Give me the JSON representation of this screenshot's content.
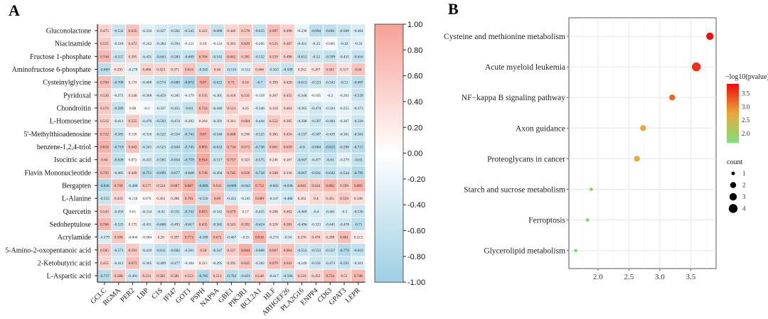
{
  "panels": {
    "a": "A",
    "b": "B"
  },
  "chart_data": [
    {
      "type": "heatmap",
      "rows": [
        "Gluconolactone",
        "Niacinamide",
        "Fructose 1-phosphate",
        "Aminofructose 6-phosphate",
        "Cysteinylglycine",
        "Pyridoxal",
        "Chondroitin",
        "L-Homoserine",
        "5'-Methylthioadenosine",
        "benzene-1,2,4-triol",
        "Isocitric acid",
        "Flavin Mononucleotide",
        "Bergapten",
        "L-Alanine",
        "Quercetin",
        "Sedoheptulose",
        "Acrylamide",
        "5-Amino-2-oxopentanoic acid",
        "2-Ketobutyric acid",
        "L-Aspartic acid"
      ],
      "columns": [
        "GCLC",
        "RGMA",
        "PER2",
        "LBP",
        "C1S",
        "IFI47",
        "GOT1",
        "PSPH",
        "NAPSA",
        "GBE1",
        "PIK3R1",
        "BCL2A1",
        "HLF",
        "ARHGEF26",
        "PLA2G16",
        "ENPP4",
        "CD63",
        "GPAT3",
        "LEPR"
      ],
      "values": [
        [
          0.475,
          -0.532,
          0.635,
          -0.334,
          -0.437,
          -0.502,
          -0.545,
          0.422,
          -0.608,
          0.446,
          0.578,
          -0.615,
          0.697,
          0.498,
          -0.238,
          -0.694,
          -0.661,
          -0.568,
          -0.404
        ],
        [
          0.555,
          -0.318,
          0.472,
          -0.242,
          -0.384,
          -0.394,
          -0.121,
          0.19,
          -0.124,
          0.363,
          0.629,
          -0.205,
          0.525,
          0.487,
          -0.411,
          -0.33,
          -0.095,
          -0.42,
          -0.33
        ],
        [
          0.744,
          -0.557,
          0.395,
          -0.435,
          -0.643,
          -0.583,
          -0.609,
          0.704,
          -0.542,
          0.662,
          0.585,
          -0.532,
          0.559,
          0.498,
          -0.612,
          -0.52,
          -0.599,
          -0.431,
          -0.616
        ],
        [
          -0.669,
          0.295,
          -0.278,
          0.486,
          0.423,
          0.371,
          0.624,
          -0.565,
          0.46,
          -0.516,
          -0.312,
          0.466,
          -0.503,
          -0.589,
          0.262,
          0.287,
          0.581,
          0.317,
          0.64
        ],
        [
          0.704,
          -0.708,
          0.174,
          -0.408,
          -0.574,
          -0.689,
          -0.872,
          0.87,
          -0.622,
          0.71,
          0.54,
          -0.7,
          0.399,
          0.428,
          -0.613,
          -0.523,
          -0.543,
          -0.51,
          -0.697
        ],
        [
          0.526,
          -0.273,
          0.248,
          -0.368,
          -0.459,
          -0.285,
          -0.179,
          0.535,
          -0.305,
          0.418,
          0.535,
          -0.158,
          0.267,
          0.455,
          -0.348,
          -0.105,
          -0.2,
          -0.201,
          -0.539
        ],
        [
          0.572,
          -0.589,
          0.08,
          -0.1,
          -0.337,
          -0.455,
          -0.61,
          0.723,
          -0.446,
          0.523,
          0.25,
          -0.346,
          0.318,
          0.401,
          -0.365,
          -0.474,
          -0.324,
          -0.255,
          -0.373
        ],
        [
          0.512,
          -0.411,
          0.555,
          -0.476,
          -0.593,
          -0.474,
          -0.283,
          0.264,
          -0.391,
          0.341,
          0.604,
          -0.444,
          0.552,
          0.395,
          -0.398,
          -0.507,
          -0.484,
          -0.267,
          -0.518
        ],
        [
          0.722,
          -0.585,
          0.118,
          -0.316,
          -0.522,
          -0.554,
          -0.743,
          0.87,
          -0.546,
          0.668,
          0.296,
          -0.525,
          0.385,
          0.456,
          -0.537,
          -0.507,
          -0.439,
          -0.361,
          -0.563
        ],
        [
          0.816,
          -0.719,
          0.643,
          -0.541,
          -0.523,
          -0.644,
          -0.745,
          0.803,
          -0.632,
          0.734,
          0.673,
          -0.736,
          0.661,
          0.639,
          -0.6,
          -0.664,
          -0.823,
          -0.596,
          -0.715
        ],
        [
          0.64,
          -0.628,
          0.072,
          -0.415,
          -0.565,
          -0.654,
          -0.759,
          0.914,
          -0.517,
          0.737,
          0.323,
          -0.575,
          0.246,
          0.267,
          -0.607,
          -0.477,
          -0.61,
          -0.279,
          -0.63
        ],
        [
          0.725,
          -0.485,
          0.449,
          -0.751,
          -0.699,
          -0.677,
          -0.668,
          0.749,
          -0.494,
          0.745,
          0.658,
          -0.718,
          0.508,
          0.336,
          -0.667,
          -0.631,
          -0.642,
          -0.544,
          -0.795
        ],
        [
          -0.828,
          0.709,
          -0.488,
          0.577,
          0.524,
          0.687,
          0.867,
          -0.868,
          0.632,
          -0.808,
          -0.643,
          0.752,
          -0.602,
          -0.638,
          0.645,
          0.624,
          0.802,
          0.599,
          0.805
        ],
        [
          -0.555,
          0.433,
          -0.118,
          0.076,
          0.263,
          0.288,
          0.701,
          -0.556,
          0.69,
          -0.431,
          -0.245,
          0.689,
          -0.347,
          -0.468,
          0.262,
          0.4,
          0.451,
          0.556,
          0.338
        ],
        [
          0.543,
          -0.458,
          0.01,
          -0.314,
          -0.42,
          -0.551,
          -0.741,
          0.815,
          -0.342,
          0.679,
          0.17,
          -0.425,
          0.288,
          0.402,
          -0.469,
          -0.4,
          -0.401,
          -0.3,
          -0.536
        ],
        [
          0.766,
          -0.525,
          0.175,
          -0.411,
          -0.608,
          -0.493,
          -0.617,
          0.635,
          -0.565,
          0.503,
          0.592,
          -0.624,
          0.328,
          0.581,
          -0.496,
          -0.323,
          -0.445,
          -0.478,
          -0.71
        ],
        [
          -0.379,
          0.588,
          -0.064,
          -0.084,
          0.26,
          0.397,
          0.773,
          -0.589,
          0.672,
          -0.407,
          -0.25,
          0.816,
          -0.274,
          -0.34,
          0.376,
          0.476,
          0.398,
          0.681,
          0.213
        ],
        [
          0.585,
          -0.571,
          0.593,
          -0.419,
          -0.611,
          -0.602,
          -0.501,
          0.58,
          -0.547,
          0.527,
          0.844,
          -0.608,
          0.667,
          0.664,
          -0.553,
          -0.553,
          -0.557,
          -0.776,
          -0.619
        ],
        [
          0.455,
          -0.412,
          0.673,
          -0.365,
          -0.409,
          -0.477,
          -0.184,
          0.215,
          -0.295,
          0.395,
          0.625,
          -0.382,
          0.679,
          0.641,
          -0.249,
          -0.531,
          -0.473,
          -0.591,
          -0.361
        ],
        [
          -0.737,
          0.588,
          -0.491,
          0.531,
          0.585,
          0.581,
          0.553,
          -0.785,
          0.513,
          -0.702,
          -0.631,
          0.546,
          -0.417,
          -0.596,
          0.516,
          0.453,
          0.734,
          0.51,
          0.746
        ]
      ],
      "colorbar": {
        "range": [
          -1,
          1
        ],
        "ticks": [
          "1.00",
          "0.80",
          "0.60",
          "0.40",
          "0.20",
          "0.00",
          "-0.20",
          "-0.40",
          "-0.60",
          "-0.80",
          "-1.00"
        ]
      },
      "colors": {
        "high": "#f6a196",
        "mid": "#ffffff",
        "low": "#9dcfe3"
      }
    },
    {
      "type": "scatter",
      "categories": [
        "Cysteine and methionine metabolism",
        "Acute myeloid leukemia",
        "NF−kappa B signaling pathway",
        "Axon guidance",
        "Proteoglycans in cancer",
        "Starch and sucrose metabolism",
        "Ferroptosis",
        "Glycerolipid metabolism"
      ],
      "x": [
        3.81,
        3.59,
        3.2,
        2.73,
        2.63,
        1.89,
        1.83,
        1.64
      ],
      "count": [
        3,
        4,
        2,
        2,
        2,
        1,
        1,
        1
      ],
      "xlim": [
        1.53,
        3.91
      ],
      "xticks": [
        "2.0",
        "2.5",
        "3.0",
        "3.5"
      ],
      "grid": true,
      "color_legend": {
        "title": "−log10(pvalue)",
        "ticks": [
          "3.5",
          "3.0",
          "2.5",
          "2.0"
        ],
        "range": [
          1.64,
          3.85
        ],
        "colors": {
          "low": "#7de07d",
          "mid": "#e8a83c",
          "high": "#f20a0a"
        }
      },
      "size_legend": {
        "title": "count",
        "values": [
          "1",
          "2",
          "3",
          "4"
        ]
      },
      "legend_placement": "right"
    }
  ]
}
